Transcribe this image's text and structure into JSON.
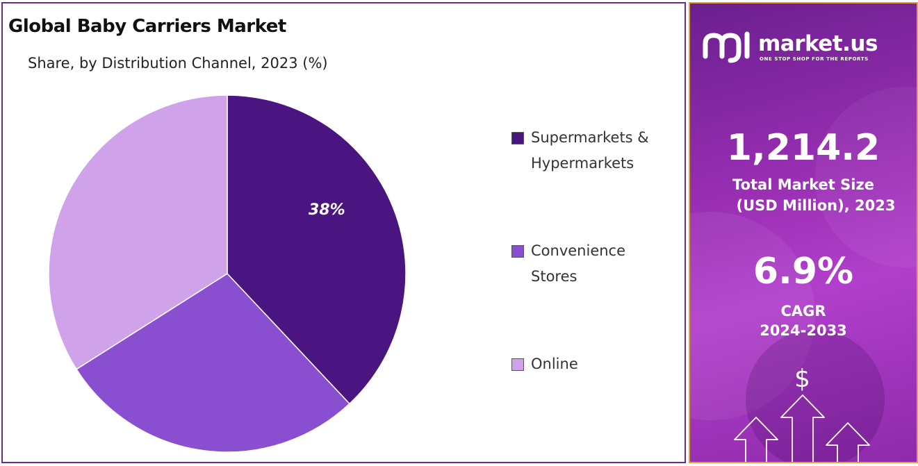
{
  "chart_data": {
    "type": "pie",
    "title": "Global Baby Carriers Market",
    "subtitle": "Share, by Distribution Channel, 2023 (%)",
    "categories": [
      "Supermarkets & Hypermarkets",
      "Convenience Stores",
      "Online"
    ],
    "values": [
      38,
      28,
      34
    ],
    "colors": [
      "#4b1581",
      "#8a4fd0",
      "#d0a2ea"
    ],
    "data_labels": [
      "38%",
      "",
      ""
    ],
    "legend_position": "right"
  },
  "legend": {
    "items": [
      {
        "line1": "Supermarkets &",
        "line2": "Hypermarkets",
        "color": "#4b1581"
      },
      {
        "line1": "Convenience",
        "line2": "Stores",
        "color": "#8a4fd0"
      },
      {
        "line1": "Online",
        "line2": "",
        "color": "#d0a2ea"
      }
    ]
  },
  "brand": {
    "name": "market.us",
    "tagline": "ONE STOP SHOP FOR THE REPORTS",
    "logo_icon": "market-us-logo-icon"
  },
  "stats": {
    "market_size_value": "1,214.2",
    "market_size_line1": "Total Market Size",
    "market_size_line2": "(USD Million), 2023",
    "cagr_value": "6.9%",
    "cagr_line1": "CAGR",
    "cagr_line2": "2024-2033"
  },
  "icons": {
    "dollar": "$",
    "growth_arrows": "growth-arrows-icon"
  },
  "theme": {
    "panel_border": "#6a2b8e",
    "info_border": "#e3a13b",
    "info_gradient": [
      "#6b1f8f",
      "#b13fcb"
    ]
  }
}
